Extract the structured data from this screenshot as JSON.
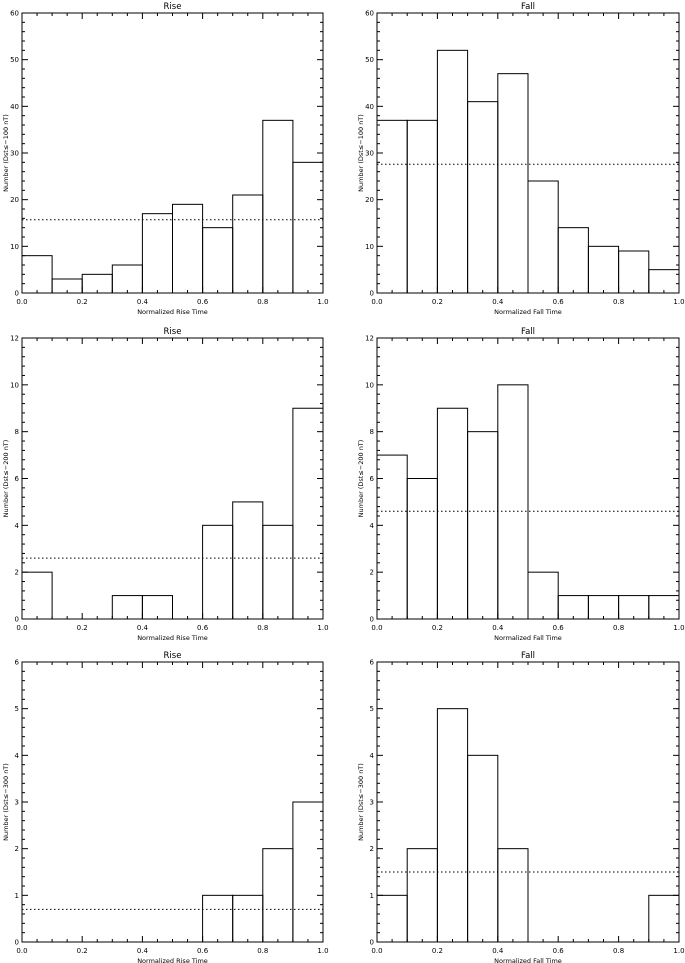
{
  "chart_data": [
    {
      "type": "bar",
      "title": "Rise",
      "xlabel": "Normalized Rise Time",
      "ylabel": "Number (Dst≤−100 nT)",
      "xlim": [
        0,
        1.0
      ],
      "ylim": [
        0,
        60
      ],
      "xticks": [
        "0.0",
        "0.2",
        "0.4",
        "0.6",
        "0.8",
        "1.0"
      ],
      "yticks": [
        "0",
        "10",
        "20",
        "30",
        "40",
        "50",
        "60"
      ],
      "bin_edges": [
        0,
        0.1,
        0.2,
        0.3,
        0.4,
        0.5,
        0.6,
        0.7,
        0.8,
        0.9,
        1.0
      ],
      "values": [
        8,
        3,
        4,
        6,
        17,
        19,
        14,
        21,
        37,
        28
      ],
      "mean_line": 15.7,
      "grid": false
    },
    {
      "type": "bar",
      "title": "Fall",
      "xlabel": "Normalized Fall Time",
      "ylabel": "Number (Dst≤−100 nT)",
      "xlim": [
        0,
        1.0
      ],
      "ylim": [
        0,
        60
      ],
      "xticks": [
        "0.0",
        "0.2",
        "0.4",
        "0.6",
        "0.8",
        "1.0"
      ],
      "yticks": [
        "0",
        "10",
        "20",
        "30",
        "40",
        "50",
        "60"
      ],
      "bin_edges": [
        0,
        0.1,
        0.2,
        0.3,
        0.4,
        0.5,
        0.6,
        0.7,
        0.8,
        0.9,
        1.0
      ],
      "values": [
        37,
        37,
        52,
        41,
        47,
        24,
        14,
        10,
        9,
        5
      ],
      "mean_line": 27.6,
      "grid": false
    },
    {
      "type": "bar",
      "title": "Rise",
      "xlabel": "Normalized Rise Time",
      "ylabel": "Number (Dst≤−200 nT)",
      "xlim": [
        0,
        1.0
      ],
      "ylim": [
        0,
        12
      ],
      "xticks": [
        "0.0",
        "0.2",
        "0.4",
        "0.6",
        "0.8",
        "1.0"
      ],
      "yticks": [
        "0",
        "2",
        "4",
        "6",
        "8",
        "10",
        "12"
      ],
      "bin_edges": [
        0,
        0.1,
        0.2,
        0.3,
        0.4,
        0.5,
        0.6,
        0.7,
        0.8,
        0.9,
        1.0
      ],
      "values": [
        2,
        0,
        0,
        1,
        1,
        0,
        4,
        5,
        4,
        9
      ],
      "mean_line": 2.6,
      "grid": false
    },
    {
      "type": "bar",
      "title": "Fall",
      "xlabel": "Normalized Fall Time",
      "ylabel": "Number (Dst≤−200 nT)",
      "xlim": [
        0,
        1.0
      ],
      "ylim": [
        0,
        12
      ],
      "xticks": [
        "0.0",
        "0.2",
        "0.4",
        "0.6",
        "0.8",
        "1.0"
      ],
      "yticks": [
        "0",
        "2",
        "4",
        "6",
        "8",
        "10",
        "12"
      ],
      "bin_edges": [
        0,
        0.1,
        0.2,
        0.3,
        0.4,
        0.5,
        0.6,
        0.7,
        0.8,
        0.9,
        1.0
      ],
      "values": [
        7,
        6,
        9,
        8,
        10,
        2,
        1,
        1,
        1,
        1
      ],
      "mean_line": 4.6,
      "grid": false
    },
    {
      "type": "bar",
      "title": "Rise",
      "xlabel": "Normalized Rise Time",
      "ylabel": "Number (Dst≤−300 nT)",
      "xlim": [
        0,
        1.0
      ],
      "ylim": [
        0,
        6
      ],
      "xticks": [
        "0.0",
        "0.2",
        "0.4",
        "0.6",
        "0.8",
        "1.0"
      ],
      "yticks": [
        "0",
        "1",
        "2",
        "3",
        "4",
        "5",
        "6"
      ],
      "bin_edges": [
        0,
        0.1,
        0.2,
        0.3,
        0.4,
        0.5,
        0.6,
        0.7,
        0.8,
        0.9,
        1.0
      ],
      "values": [
        0,
        0,
        0,
        0,
        0,
        0,
        1,
        1,
        2,
        3
      ],
      "mean_line": 0.7,
      "grid": false
    },
    {
      "type": "bar",
      "title": "Fall",
      "xlabel": "Normalized Fall Time",
      "ylabel": "Number (Dst≤−300 nT)",
      "xlim": [
        0,
        1.0
      ],
      "ylim": [
        0,
        6
      ],
      "xticks": [
        "0.0",
        "0.2",
        "0.4",
        "0.6",
        "0.8",
        "1.0"
      ],
      "yticks": [
        "0",
        "1",
        "2",
        "3",
        "4",
        "5",
        "6"
      ],
      "bin_edges": [
        0,
        0.1,
        0.2,
        0.3,
        0.4,
        0.5,
        0.6,
        0.7,
        0.8,
        0.9,
        1.0
      ],
      "values": [
        1,
        2,
        5,
        4,
        2,
        0,
        0,
        0,
        0,
        1
      ],
      "mean_line": 1.5,
      "grid": false
    }
  ]
}
